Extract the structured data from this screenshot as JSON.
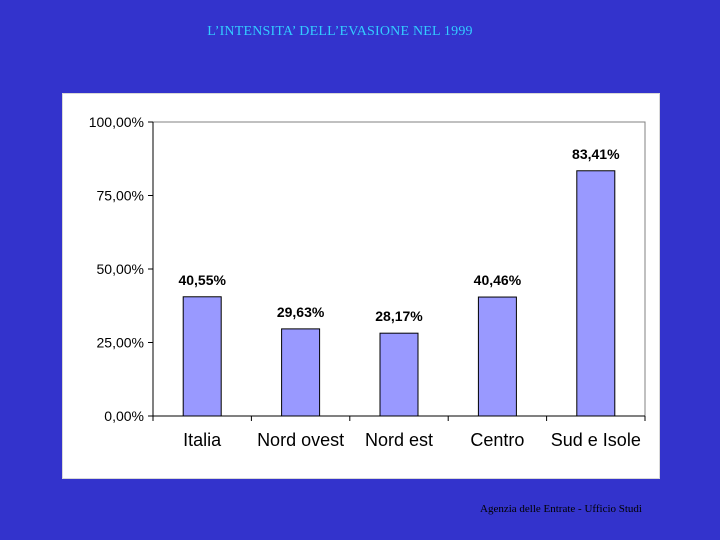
{
  "slide": {
    "title": "L’INTENSITA’ DELL’EVASIONE NEL 1999",
    "footer": "Agenzia delle Entrate - Ufficio Studi"
  },
  "colors": {
    "background": "#3333cc",
    "title": "#33ccff",
    "panel": "#ffffff",
    "bar": "#9999ff",
    "bar_border": "#000000",
    "axis": "#000000",
    "plot_border": "#808080"
  },
  "chart_data": {
    "type": "bar",
    "title": "",
    "xlabel": "",
    "ylabel": "",
    "categories": [
      "Italia",
      "Nord ovest",
      "Nord est",
      "Centro",
      "Sud e Isole"
    ],
    "values": [
      40.55,
      29.63,
      28.17,
      40.46,
      83.41
    ],
    "value_labels": [
      "40,55%",
      "29,63%",
      "28,17%",
      "40,46%",
      "83,41%"
    ],
    "ylim": [
      0,
      100
    ],
    "yticks": [
      0,
      25,
      50,
      75,
      100
    ],
    "ytick_labels": [
      "0,00%",
      "25,00%",
      "50,00%",
      "75,00%",
      "100,00%"
    ],
    "grid": false,
    "legend": "none"
  }
}
